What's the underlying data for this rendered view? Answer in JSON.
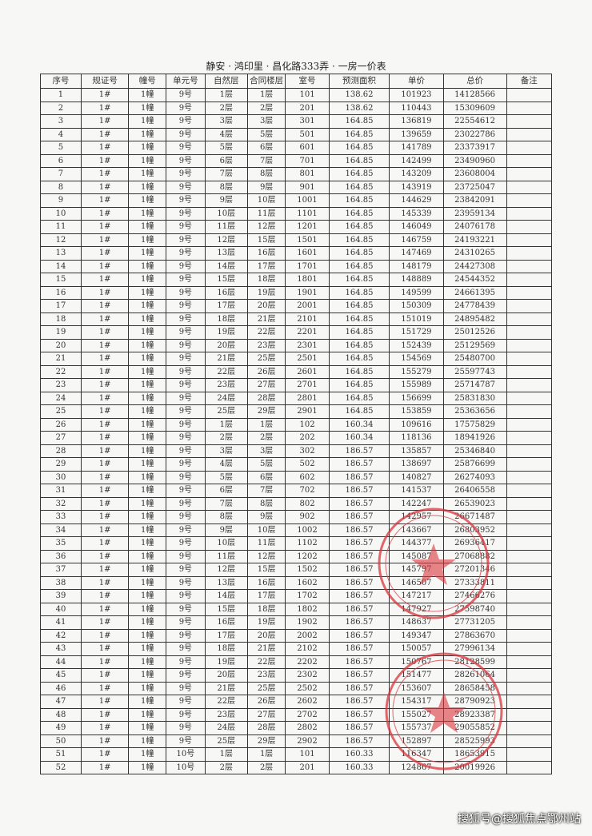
{
  "title": "静安 · 鸿印里 · 昌化路333弄 · 一房一价表",
  "columns": [
    "序号",
    "规证号",
    "幢号",
    "单元号",
    "自然层",
    "合同楼层",
    "室号",
    "预测面积",
    "单价",
    "总价",
    "备注"
  ],
  "rows": [
    [
      "1",
      "1#",
      "1幢",
      "9号",
      "1层",
      "1层",
      "101",
      "138.62",
      "101923",
      "14128566",
      ""
    ],
    [
      "2",
      "1#",
      "1幢",
      "9号",
      "2层",
      "2层",
      "201",
      "138.62",
      "110443",
      "15309609",
      ""
    ],
    [
      "3",
      "1#",
      "1幢",
      "9号",
      "3层",
      "3层",
      "301",
      "164.85",
      "136819",
      "22554612",
      ""
    ],
    [
      "4",
      "1#",
      "1幢",
      "9号",
      "4层",
      "5层",
      "501",
      "164.85",
      "139659",
      "23022786",
      ""
    ],
    [
      "5",
      "1#",
      "1幢",
      "9号",
      "5层",
      "6层",
      "601",
      "164.85",
      "141789",
      "23373917",
      ""
    ],
    [
      "6",
      "1#",
      "1幢",
      "9号",
      "6层",
      "7层",
      "701",
      "164.85",
      "142499",
      "23490960",
      ""
    ],
    [
      "7",
      "1#",
      "1幢",
      "9号",
      "7层",
      "8层",
      "801",
      "164.85",
      "143209",
      "23608004",
      ""
    ],
    [
      "8",
      "1#",
      "1幢",
      "9号",
      "8层",
      "9层",
      "901",
      "164.85",
      "143919",
      "23725047",
      ""
    ],
    [
      "9",
      "1#",
      "1幢",
      "9号",
      "9层",
      "10层",
      "1001",
      "164.85",
      "144629",
      "23842091",
      ""
    ],
    [
      "10",
      "1#",
      "1幢",
      "9号",
      "10层",
      "11层",
      "1101",
      "164.85",
      "145339",
      "23959134",
      ""
    ],
    [
      "11",
      "1#",
      "1幢",
      "9号",
      "11层",
      "12层",
      "1201",
      "164.85",
      "146049",
      "24076178",
      ""
    ],
    [
      "12",
      "1#",
      "1幢",
      "9号",
      "12层",
      "15层",
      "1501",
      "164.85",
      "146759",
      "24193221",
      ""
    ],
    [
      "13",
      "1#",
      "1幢",
      "9号",
      "13层",
      "16层",
      "1601",
      "164.85",
      "147469",
      "24310265",
      ""
    ],
    [
      "14",
      "1#",
      "1幢",
      "9号",
      "14层",
      "17层",
      "1701",
      "164.85",
      "148179",
      "24427308",
      ""
    ],
    [
      "15",
      "1#",
      "1幢",
      "9号",
      "15层",
      "18层",
      "1801",
      "164.85",
      "148889",
      "24544352",
      ""
    ],
    [
      "16",
      "1#",
      "1幢",
      "9号",
      "16层",
      "19层",
      "1901",
      "164.85",
      "149599",
      "24661395",
      ""
    ],
    [
      "17",
      "1#",
      "1幢",
      "9号",
      "17层",
      "20层",
      "2001",
      "164.85",
      "150309",
      "24778439",
      ""
    ],
    [
      "18",
      "1#",
      "1幢",
      "9号",
      "18层",
      "21层",
      "2101",
      "164.85",
      "151019",
      "24895482",
      ""
    ],
    [
      "19",
      "1#",
      "1幢",
      "9号",
      "19层",
      "22层",
      "2201",
      "164.85",
      "151729",
      "25012526",
      ""
    ],
    [
      "20",
      "1#",
      "1幢",
      "9号",
      "20层",
      "23层",
      "2301",
      "164.85",
      "152439",
      "25129569",
      ""
    ],
    [
      "21",
      "1#",
      "1幢",
      "9号",
      "21层",
      "25层",
      "2501",
      "164.85",
      "154569",
      "25480700",
      ""
    ],
    [
      "22",
      "1#",
      "1幢",
      "9号",
      "22层",
      "26层",
      "2601",
      "164.85",
      "155279",
      "25597743",
      ""
    ],
    [
      "23",
      "1#",
      "1幢",
      "9号",
      "23层",
      "27层",
      "2701",
      "164.85",
      "155989",
      "25714787",
      ""
    ],
    [
      "24",
      "1#",
      "1幢",
      "9号",
      "24层",
      "28层",
      "2801",
      "164.85",
      "156699",
      "25831830",
      ""
    ],
    [
      "25",
      "1#",
      "1幢",
      "9号",
      "25层",
      "29层",
      "2901",
      "164.85",
      "153859",
      "25363656",
      ""
    ],
    [
      "26",
      "1#",
      "1幢",
      "9号",
      "1层",
      "1层",
      "102",
      "160.34",
      "109616",
      "17575829",
      ""
    ],
    [
      "27",
      "1#",
      "1幢",
      "9号",
      "2层",
      "2层",
      "202",
      "160.34",
      "118136",
      "18941926",
      ""
    ],
    [
      "28",
      "1#",
      "1幢",
      "9号",
      "3层",
      "3层",
      "302",
      "186.57",
      "135857",
      "25346840",
      ""
    ],
    [
      "29",
      "1#",
      "1幢",
      "9号",
      "4层",
      "5层",
      "502",
      "186.57",
      "138697",
      "25876699",
      ""
    ],
    [
      "30",
      "1#",
      "1幢",
      "9号",
      "5层",
      "6层",
      "602",
      "186.57",
      "140827",
      "26274093",
      ""
    ],
    [
      "31",
      "1#",
      "1幢",
      "9号",
      "6层",
      "7层",
      "702",
      "186.57",
      "141537",
      "26406558",
      ""
    ],
    [
      "32",
      "1#",
      "1幢",
      "9号",
      "7层",
      "8层",
      "802",
      "186.57",
      "142247",
      "26539023",
      ""
    ],
    [
      "33",
      "1#",
      "1幢",
      "9号",
      "8层",
      "9层",
      "902",
      "186.57",
      "142957",
      "26671487",
      ""
    ],
    [
      "34",
      "1#",
      "1幢",
      "9号",
      "9层",
      "10层",
      "1002",
      "186.57",
      "143667",
      "26803952",
      ""
    ],
    [
      "35",
      "1#",
      "1幢",
      "9号",
      "10层",
      "11层",
      "1102",
      "186.57",
      "144377",
      "26936417",
      ""
    ],
    [
      "36",
      "1#",
      "1幢",
      "9号",
      "11层",
      "12层",
      "1202",
      "186.57",
      "145087",
      "27068882",
      ""
    ],
    [
      "37",
      "1#",
      "1幢",
      "9号",
      "12层",
      "15层",
      "1502",
      "186.57",
      "145797",
      "27201346",
      ""
    ],
    [
      "38",
      "1#",
      "1幢",
      "9号",
      "13层",
      "16层",
      "1602",
      "186.57",
      "146507",
      "27333811",
      ""
    ],
    [
      "39",
      "1#",
      "1幢",
      "9号",
      "14层",
      "17层",
      "1702",
      "186.57",
      "147217",
      "27466276",
      ""
    ],
    [
      "40",
      "1#",
      "1幢",
      "9号",
      "15层",
      "18层",
      "1802",
      "186.57",
      "147927",
      "27598740",
      ""
    ],
    [
      "41",
      "1#",
      "1幢",
      "9号",
      "16层",
      "19层",
      "1902",
      "186.57",
      "148637",
      "27731205",
      ""
    ],
    [
      "42",
      "1#",
      "1幢",
      "9号",
      "17层",
      "20层",
      "2002",
      "186.57",
      "149347",
      "27863670",
      ""
    ],
    [
      "43",
      "1#",
      "1幢",
      "9号",
      "18层",
      "21层",
      "2102",
      "186.57",
      "150057",
      "27996134",
      ""
    ],
    [
      "44",
      "1#",
      "1幢",
      "9号",
      "19层",
      "22层",
      "2202",
      "186.57",
      "150767",
      "28128599",
      ""
    ],
    [
      "45",
      "1#",
      "1幢",
      "9号",
      "20层",
      "23层",
      "2302",
      "186.57",
      "151477",
      "28261064",
      ""
    ],
    [
      "46",
      "1#",
      "1幢",
      "9号",
      "21层",
      "25层",
      "2502",
      "186.57",
      "153607",
      "28658458",
      ""
    ],
    [
      "47",
      "1#",
      "1幢",
      "9号",
      "22层",
      "26层",
      "2602",
      "186.57",
      "154317",
      "28790923",
      ""
    ],
    [
      "48",
      "1#",
      "1幢",
      "9号",
      "23层",
      "27层",
      "2702",
      "186.57",
      "155027",
      "28923387",
      ""
    ],
    [
      "49",
      "1#",
      "1幢",
      "9号",
      "24层",
      "28层",
      "2802",
      "186.57",
      "155737",
      "29055852",
      ""
    ],
    [
      "50",
      "1#",
      "1幢",
      "9号",
      "25层",
      "29层",
      "2902",
      "186.57",
      "152897",
      "28525993",
      ""
    ],
    [
      "51",
      "1#",
      "1幢",
      "10号",
      "1层",
      "1层",
      "101",
      "160.33",
      "116347",
      "18653915",
      ""
    ],
    [
      "52",
      "1#",
      "1幢",
      "10号",
      "2层",
      "2层",
      "201",
      "160.33",
      "124867",
      "20019926",
      ""
    ]
  ],
  "watermark": "搜狐号@搜狐焦点鄂州站",
  "colors": {
    "stamp": "#d9363e"
  }
}
